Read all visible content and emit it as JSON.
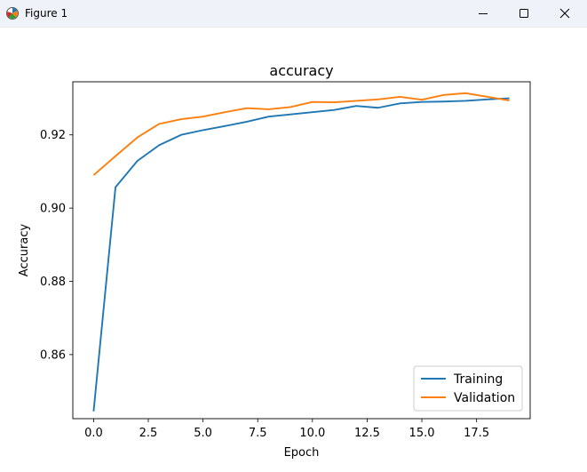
{
  "window": {
    "title": "Figure 1",
    "icon": "matplotlib-icon"
  },
  "chart_data": {
    "type": "line",
    "title": "accuracy",
    "xlabel": "Epoch",
    "ylabel": "Accuracy",
    "xlim": [
      -0.95,
      19.95
    ],
    "ylim": [
      0.8425,
      0.9345
    ],
    "xticks": [
      0.0,
      2.5,
      5.0,
      7.5,
      10.0,
      12.5,
      15.0,
      17.5
    ],
    "xtick_labels": [
      "0.0",
      "2.5",
      "5.0",
      "7.5",
      "10.0",
      "12.5",
      "15.0",
      "17.5"
    ],
    "yticks": [
      0.86,
      0.88,
      0.9,
      0.92
    ],
    "ytick_labels": [
      "0.86",
      "0.88",
      "0.90",
      "0.92"
    ],
    "grid": false,
    "legend_position": "lower-right",
    "x": [
      0,
      1,
      2,
      3,
      4,
      5,
      6,
      7,
      8,
      9,
      10,
      11,
      12,
      13,
      14,
      15,
      16,
      17,
      18,
      19
    ],
    "series": [
      {
        "name": "Training",
        "color": "#1f77b4",
        "values": [
          0.8445,
          0.9057,
          0.9129,
          0.9172,
          0.92,
          0.9213,
          0.9224,
          0.9236,
          0.925,
          0.9256,
          0.9262,
          0.9268,
          0.9279,
          0.9274,
          0.9286,
          0.929,
          0.9291,
          0.9293,
          0.9297,
          0.93
        ]
      },
      {
        "name": "Validation",
        "color": "#ff7f0e",
        "values": [
          0.909,
          0.9142,
          0.9193,
          0.923,
          0.9243,
          0.925,
          0.9262,
          0.9273,
          0.927,
          0.9276,
          0.929,
          0.9289,
          0.9293,
          0.9297,
          0.9304,
          0.9296,
          0.9309,
          0.9314,
          0.9304,
          0.9294
        ]
      }
    ]
  }
}
